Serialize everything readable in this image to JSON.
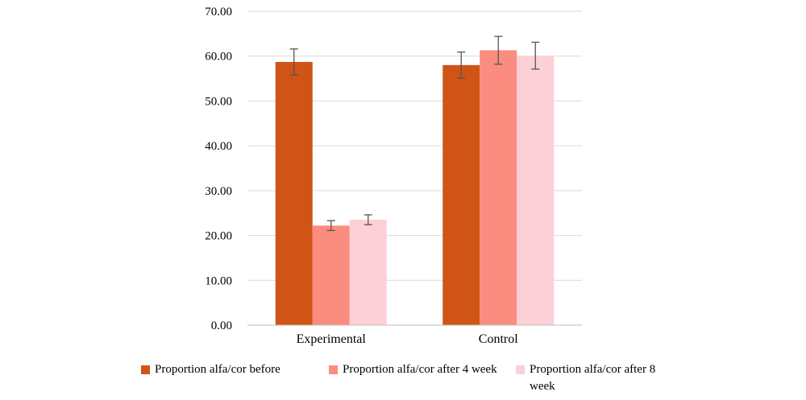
{
  "chart_data": {
    "type": "bar",
    "title": "",
    "xlabel": "",
    "ylabel": "",
    "categories": [
      "Experimental",
      "Control"
    ],
    "ylim": [
      0,
      70
    ],
    "yticks": [
      "0.00",
      "10.00",
      "20.00",
      "30.00",
      "40.00",
      "50.00",
      "60.00",
      "70.00"
    ],
    "grid": true,
    "legend_position": "bottom",
    "series": [
      {
        "name": "Proportion alfa/cor before",
        "color": "#D05416",
        "values": [
          58.7,
          58.0
        ],
        "errors": [
          2.9,
          2.9
        ]
      },
      {
        "name": "Proportion alfa/cor after 4 week",
        "color": "#FB8C80",
        "values": [
          22.2,
          61.3
        ],
        "errors": [
          1.1,
          3.1
        ]
      },
      {
        "name": "Proportion alfa/cor after 8 week",
        "color": "#FDCFD6",
        "values": [
          23.5,
          60.1
        ],
        "errors": [
          1.1,
          3.0
        ]
      }
    ]
  }
}
